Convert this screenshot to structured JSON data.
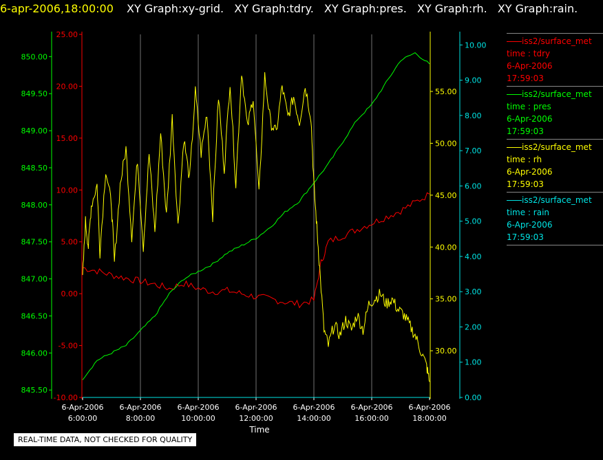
{
  "header": {
    "timestamp": "6-apr-2006,18:00:00",
    "tabs": [
      "XY Graph:xy-grid.",
      "XY Graph:tdry.",
      "XY Graph:pres.",
      "XY Graph:rh.",
      "XY Graph:rain."
    ]
  },
  "colors": {
    "tdry": "#ff0000",
    "pres": "#00ff00",
    "rh": "#ffff00",
    "rain": "#00e5e5",
    "grid": "#c0c0c0",
    "axis_text": "#ffffff"
  },
  "legend": [
    {
      "series": "iss2/surface_met",
      "field": "time : tdry",
      "date": "6-Apr-2006",
      "time": "17:59:03",
      "color": "#ff0000"
    },
    {
      "series": "iss2/surface_met",
      "field": "time : pres",
      "date": "6-Apr-2006",
      "time": "17:59:03",
      "color": "#00ff00"
    },
    {
      "series": "iss2/surface_met",
      "field": "time : rh",
      "date": "6-Apr-2006",
      "time": "17:59:03",
      "color": "#ffff00"
    },
    {
      "series": "iss2/surface_met",
      "field": "time : rain",
      "date": "6-Apr-2006",
      "time": "17:59:03",
      "color": "#00e5e5"
    }
  ],
  "disclaimer": "REAL-TIME DATA, NOT CHECKED FOR QUALITY",
  "chart_data": {
    "type": "line",
    "xlabel": "Time",
    "x_ticks": [
      {
        "date": "6-Apr-2006",
        "time": "6:00:00",
        "hour": 6
      },
      {
        "date": "6-Apr-2006",
        "time": "8:00:00",
        "hour": 8
      },
      {
        "date": "6-Apr-2006",
        "time": "10:00:00",
        "hour": 10
      },
      {
        "date": "6-Apr-2006",
        "time": "12:00:00",
        "hour": 12
      },
      {
        "date": "6-Apr-2006",
        "time": "14:00:00",
        "hour": 14
      },
      {
        "date": "6-Apr-2006",
        "time": "16:00:00",
        "hour": 16
      },
      {
        "date": "6-Apr-2006",
        "time": "18:00:00",
        "hour": 18
      }
    ],
    "xlim": [
      6,
      18
    ],
    "grid": true,
    "axes": {
      "pres": {
        "ylim": [
          845.4,
          850.3
        ],
        "ticks": [
          "845.50",
          "846.00",
          "846.50",
          "847.00",
          "847.50",
          "848.00",
          "848.50",
          "849.00",
          "849.50",
          "850.00"
        ],
        "tick_values": [
          845.5,
          846,
          846.5,
          847,
          847.5,
          848,
          848.5,
          849,
          849.5,
          850
        ]
      },
      "tdry": {
        "ylim": [
          -10,
          25
        ],
        "ticks": [
          "-10.00",
          "-5.00",
          "0.00",
          "5.00",
          "10.00",
          "15.00",
          "20.00",
          "25.00"
        ],
        "tick_values": [
          -10,
          -5,
          0,
          5,
          10,
          15,
          20,
          25
        ]
      },
      "rh": {
        "ylim": [
          25.5,
          60.5
        ],
        "ticks": [
          "30.00",
          "35.00",
          "40.00",
          "45.00",
          "50.00",
          "55.00"
        ],
        "tick_values": [
          30,
          35,
          40,
          45,
          50,
          55
        ]
      },
      "rain": {
        "ylim": [
          0,
          10.3
        ],
        "ticks": [
          "0.00",
          "1.00",
          "2.00",
          "3.00",
          "4.00",
          "5.00",
          "6.00",
          "7.00",
          "8.00",
          "9.00",
          "10.00"
        ],
        "tick_values": [
          0,
          1,
          2,
          3,
          4,
          5,
          6,
          7,
          8,
          9,
          10
        ]
      }
    },
    "series": [
      {
        "name": "time : tdry",
        "axis": "tdry",
        "x": [
          6.0,
          6.5,
          7.0,
          7.5,
          8.0,
          8.5,
          9.0,
          9.5,
          10.0,
          10.5,
          11.0,
          11.5,
          12.0,
          12.5,
          13.0,
          13.5,
          14.0,
          14.25,
          14.5,
          15.0,
          15.5,
          16.0,
          16.5,
          17.0,
          17.5,
          18.0
        ],
        "values": [
          2.5,
          2.2,
          1.8,
          1.5,
          1.2,
          0.9,
          0.5,
          1.0,
          0.5,
          0.2,
          0.3,
          0.0,
          -0.3,
          -0.5,
          -0.8,
          -1.0,
          -0.6,
          3.0,
          5.0,
          5.6,
          6.2,
          6.8,
          7.4,
          8.0,
          8.8,
          9.6
        ]
      },
      {
        "name": "time : pres",
        "axis": "pres",
        "x": [
          6.0,
          6.5,
          7.0,
          7.5,
          8.0,
          8.5,
          9.0,
          9.5,
          10.0,
          10.5,
          11.0,
          11.5,
          12.0,
          12.5,
          13.0,
          13.5,
          14.0,
          14.5,
          15.0,
          15.5,
          16.0,
          16.5,
          17.0,
          17.5,
          18.0
        ],
        "values": [
          845.65,
          845.9,
          846.0,
          846.1,
          846.3,
          846.5,
          846.8,
          847.0,
          847.1,
          847.2,
          847.35,
          847.45,
          847.55,
          847.7,
          847.9,
          848.05,
          848.3,
          848.55,
          848.85,
          849.15,
          849.35,
          849.65,
          849.95,
          850.05,
          849.9
        ]
      },
      {
        "name": "time : rh",
        "axis": "rh",
        "x": [
          6.0,
          6.1,
          6.2,
          6.3,
          6.5,
          6.6,
          6.8,
          7.0,
          7.1,
          7.3,
          7.5,
          7.7,
          7.9,
          8.1,
          8.3,
          8.5,
          8.7,
          8.9,
          9.1,
          9.3,
          9.5,
          9.7,
          9.9,
          10.1,
          10.3,
          10.5,
          10.7,
          10.9,
          11.1,
          11.3,
          11.5,
          11.7,
          11.9,
          12.1,
          12.3,
          12.5,
          12.7,
          12.9,
          13.1,
          13.3,
          13.5,
          13.7,
          13.9,
          14.0,
          14.1,
          14.2,
          14.35,
          14.5,
          14.7,
          14.9,
          15.1,
          15.3,
          15.5,
          15.7,
          15.9,
          16.1,
          16.3,
          16.5,
          16.7,
          16.9,
          17.1,
          17.3,
          17.5,
          17.7,
          17.9,
          18.0
        ],
        "values": [
          37.0,
          42.5,
          40.0,
          44.0,
          46.0,
          39.5,
          47.5,
          44.0,
          38.5,
          46.0,
          49.5,
          41.0,
          48.5,
          40.0,
          49.0,
          41.5,
          51.0,
          43.0,
          52.5,
          42.0,
          50.5,
          46.5,
          55.0,
          49.0,
          53.0,
          43.0,
          54.5,
          47.5,
          56.0,
          46.0,
          57.0,
          51.5,
          54.5,
          45.0,
          56.5,
          52.0,
          51.0,
          55.5,
          52.5,
          54.5,
          52.0,
          55.5,
          52.5,
          46.0,
          42.0,
          38.0,
          32.0,
          30.5,
          32.5,
          31.5,
          33.0,
          32.0,
          33.5,
          32.0,
          34.5,
          35.0,
          35.5,
          34.5,
          35.0,
          34.0,
          33.5,
          32.5,
          31.5,
          30.0,
          28.5,
          27.0
        ]
      },
      {
        "name": "time : rain",
        "axis": "rain",
        "x": [
          6.0,
          18.0
        ],
        "values": [
          0.0,
          0.0
        ]
      }
    ]
  }
}
